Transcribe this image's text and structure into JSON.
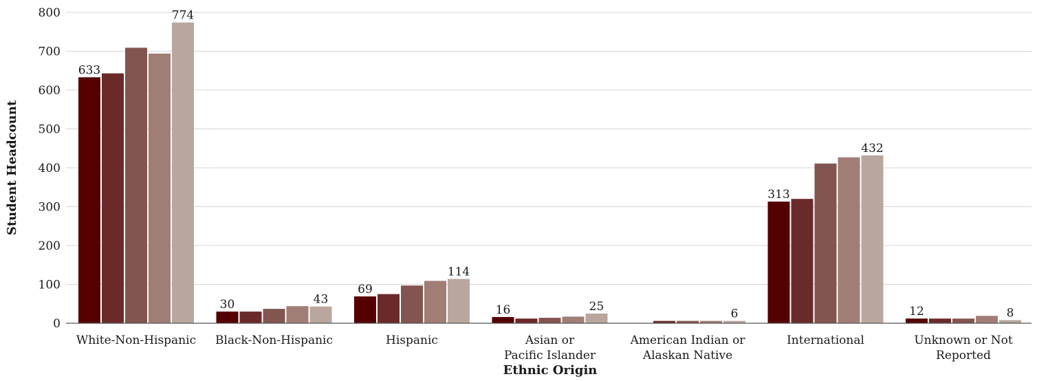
{
  "chart_data": {
    "type": "bar",
    "xlabel": "Ethnic Origin",
    "ylabel": "Student Headcount",
    "ylim": [
      0,
      800
    ],
    "yticks": [
      0,
      100,
      200,
      300,
      400,
      500,
      600,
      700,
      800
    ],
    "grid": true,
    "categories": [
      "White-Non-Hispanic",
      "Black-Non-Hispanic",
      "Hispanic",
      "Asian or Pacific Islander",
      "American Indian or Alaskan Native",
      "International",
      "Unknown or Not Reported"
    ],
    "series": [
      {
        "color": "#550000",
        "values": [
          633,
          30,
          69,
          16,
          0,
          313,
          12
        ]
      },
      {
        "color": "#6b2a2a",
        "values": [
          643,
          30,
          75,
          12,
          6,
          320,
          12
        ]
      },
      {
        "color": "#835550",
        "values": [
          709,
          37,
          97,
          14,
          6,
          411,
          12
        ]
      },
      {
        "color": "#a07e76",
        "values": [
          694,
          44,
          109,
          17,
          6,
          427,
          19
        ]
      },
      {
        "color": "#b9a79f",
        "values": [
          774,
          43,
          114,
          25,
          6,
          432,
          8
        ]
      }
    ],
    "data_labels": [
      {
        "category_index": 0,
        "series_index": 0,
        "text": "633"
      },
      {
        "category_index": 0,
        "series_index": 4,
        "text": "774"
      },
      {
        "category_index": 1,
        "series_index": 0,
        "text": "30"
      },
      {
        "category_index": 1,
        "series_index": 4,
        "text": "43"
      },
      {
        "category_index": 2,
        "series_index": 0,
        "text": "69"
      },
      {
        "category_index": 2,
        "series_index": 4,
        "text": "114"
      },
      {
        "category_index": 3,
        "series_index": 0,
        "text": "16"
      },
      {
        "category_index": 3,
        "series_index": 4,
        "text": "25"
      },
      {
        "category_index": 4,
        "series_index": 4,
        "text": "6"
      },
      {
        "category_index": 5,
        "series_index": 0,
        "text": "313"
      },
      {
        "category_index": 5,
        "series_index": 4,
        "text": "432"
      },
      {
        "category_index": 6,
        "series_index": 0,
        "text": "12"
      },
      {
        "category_index": 6,
        "series_index": 4,
        "text": "8"
      }
    ]
  }
}
